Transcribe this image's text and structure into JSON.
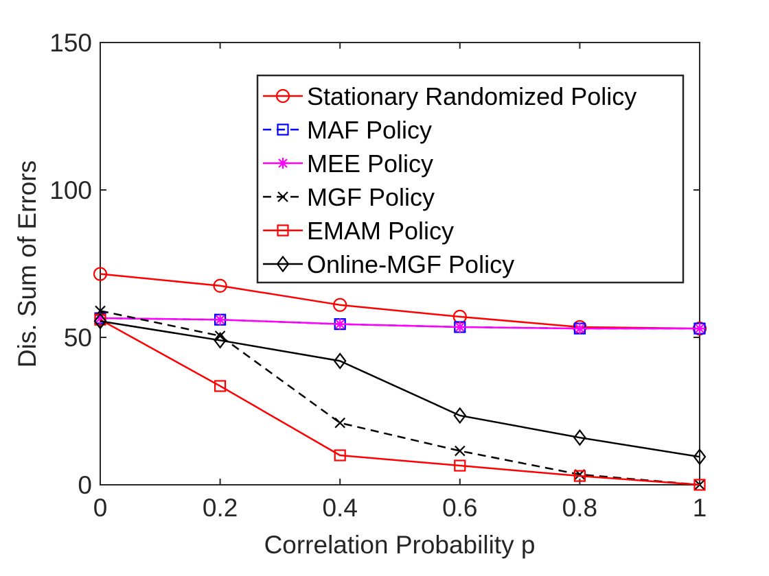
{
  "chart_data": {
    "type": "line",
    "title": "",
    "xlabel": "Correlation Probability p",
    "ylabel": "Dis. Sum of Errors",
    "xlim": [
      0,
      1
    ],
    "ylim": [
      0,
      150
    ],
    "x": [
      0,
      0.2,
      0.4,
      0.6,
      0.8,
      1
    ],
    "x_ticks": [
      0,
      0.2,
      0.4,
      0.6,
      0.8,
      1
    ],
    "x_tick_labels": [
      "0",
      "0.2",
      "0.4",
      "0.6",
      "0.8",
      "1"
    ],
    "y_ticks": [
      0,
      50,
      100,
      150
    ],
    "y_tick_labels": [
      "0",
      "50",
      "100",
      "150"
    ],
    "grid": false,
    "legend_position": "top-right",
    "series": [
      {
        "name": "Stationary Randomized Policy",
        "values": [
          71.5,
          67.5,
          61,
          57,
          53.5,
          53
        ],
        "color": "#ff0000",
        "marker": "circle",
        "dash": "solid"
      },
      {
        "name": "MAF Policy",
        "values": [
          56.5,
          56,
          54.5,
          53.5,
          53,
          53
        ],
        "color": "#0000ff",
        "marker": "square",
        "dash": "dashed"
      },
      {
        "name": "MEE Policy",
        "values": [
          56.5,
          56,
          54.5,
          53.5,
          53,
          53
        ],
        "color": "#ff00ff",
        "marker": "asterisk",
        "dash": "solid"
      },
      {
        "name": "MGF Policy",
        "values": [
          59,
          50.5,
          21,
          11.5,
          3.5,
          0
        ],
        "color": "#000000",
        "marker": "x",
        "dash": "dashed"
      },
      {
        "name": "EMAM Policy",
        "values": [
          56,
          33.5,
          10,
          6.5,
          3,
          0
        ],
        "color": "#ff0000",
        "marker": "square",
        "dash": "solid"
      },
      {
        "name": "Online-MGF Policy",
        "values": [
          55.5,
          49,
          42,
          23.5,
          16,
          9.5
        ],
        "color": "#000000",
        "marker": "diamond",
        "dash": "solid"
      }
    ]
  }
}
